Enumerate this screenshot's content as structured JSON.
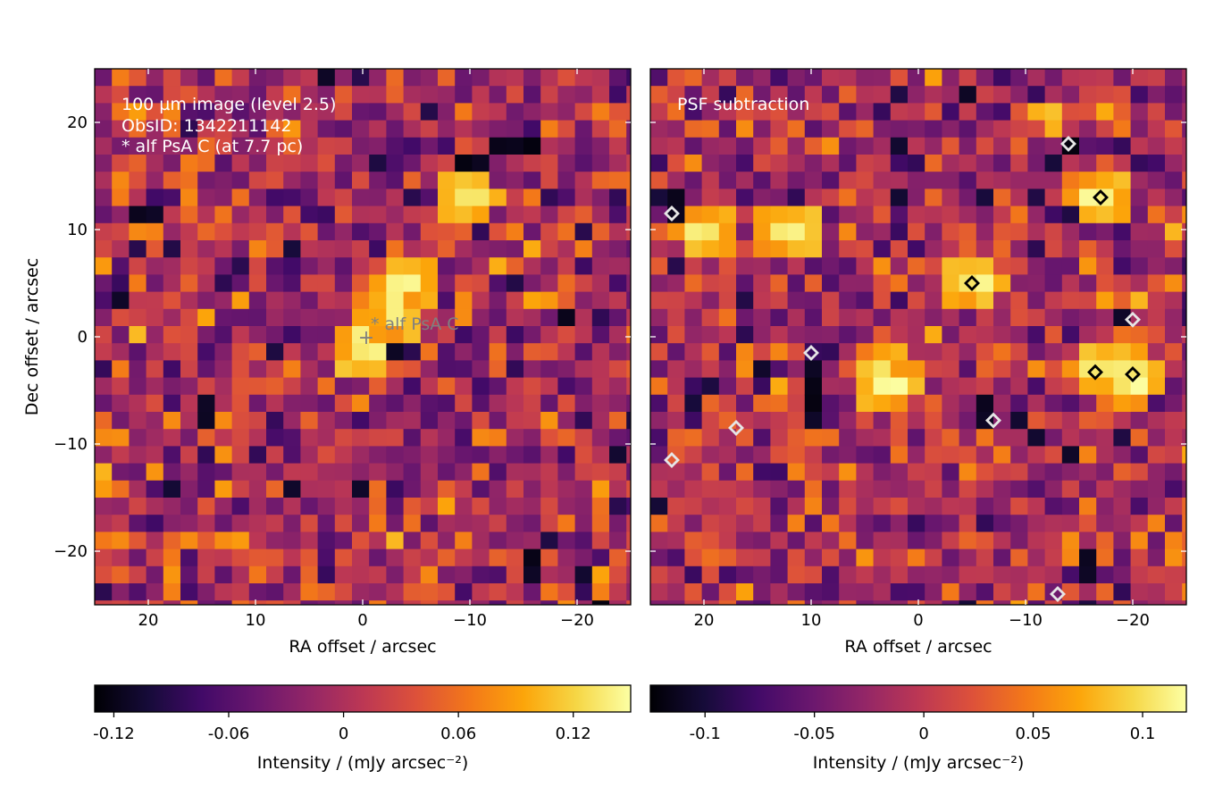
{
  "chart_data": [
    {
      "type": "heatmap",
      "panel": "left",
      "annotation_lines": [
        "100 µm image (level 2.5)",
        "ObsID: 1342211142",
        "* alf PsA C (at 7.7 pc)"
      ],
      "target_marker": "+",
      "target_label": "* alf PsA C",
      "xlabel": "RA offset / arcsec",
      "ylabel": "Dec offset / arcsec",
      "xlim": [
        25,
        -25
      ],
      "ylim": [
        -25,
        25
      ],
      "xticks": [
        20,
        10,
        0,
        -10,
        -20
      ],
      "xtick_labels": [
        "20",
        "10",
        "0",
        "−10",
        "−20"
      ],
      "yticks": [
        20,
        10,
        0,
        -10,
        -20
      ],
      "ytick_labels": [
        "20",
        "10",
        "0",
        "−10",
        "−20"
      ],
      "pixel_size_arcsec": 1.6,
      "colormap": "inferno",
      "seed": 7,
      "bright_peaks": [
        [
          0,
          -1
        ],
        [
          -3,
          2
        ],
        [
          -4,
          5
        ],
        [
          -10,
          13
        ]
      ],
      "dark_spots": [
        [
          -19,
          2
        ],
        [
          -13,
          18
        ],
        [
          -16,
          18
        ],
        [
          20,
          11
        ],
        [
          -10,
          16
        ],
        [
          15,
          -7
        ],
        [
          -16,
          -21
        ]
      ],
      "colorbar": {
        "vmin": -0.13,
        "vmax": 0.15,
        "ticks": [
          -0.12,
          -0.06,
          0,
          0.06,
          0.12
        ],
        "tick_labels": [
          "-0.12",
          "-0.06",
          "0",
          "0.06",
          "0.12"
        ],
        "label": "Intensity / (mJy arcsec⁻²)"
      }
    },
    {
      "type": "heatmap",
      "panel": "right",
      "annotation_lines": [
        "PSF subtraction"
      ],
      "xlabel": "RA offset / arcsec",
      "xlim": [
        25,
        -25
      ],
      "ylim": [
        -25,
        25
      ],
      "xticks": [
        20,
        10,
        0,
        -10,
        -20
      ],
      "xtick_labels": [
        "20",
        "10",
        "0",
        "−10",
        "−20"
      ],
      "pixel_size_arcsec": 1.6,
      "colormap": "inferno",
      "seed": 19,
      "bright_peaks": [
        [
          -5,
          5
        ],
        [
          -20,
          -4
        ],
        [
          3,
          -4
        ],
        [
          -17,
          -3
        ],
        [
          -17,
          13
        ],
        [
          12,
          10
        ],
        [
          20,
          10
        ]
      ],
      "dark_spots": [
        [
          -14,
          18
        ],
        [
          -19,
          2
        ],
        [
          23,
          12
        ],
        [
          10,
          -4
        ],
        [
          10,
          -7
        ],
        [
          -6,
          -7
        ],
        [
          -14,
          -11
        ],
        [
          -16,
          -21
        ]
      ],
      "contours": {
        "white": [
          [
            -14,
            18
          ],
          [
            23,
            11.5
          ],
          [
            -20,
            1.6
          ],
          [
            10,
            -1.5
          ],
          [
            17,
            -8.5
          ],
          [
            -7,
            -7.8
          ],
          [
            23,
            -11.5
          ],
          [
            -13,
            -24
          ]
        ],
        "black": [
          [
            -5,
            5
          ],
          [
            -20,
            -3.5
          ],
          [
            -17,
            13
          ],
          [
            -16.5,
            -3.3
          ]
        ]
      },
      "colorbar": {
        "vmin": -0.125,
        "vmax": 0.12,
        "ticks": [
          -0.1,
          -0.05,
          0,
          0.05,
          0.1
        ],
        "tick_labels": [
          "-0.1",
          "-0.05",
          "0",
          "0.05",
          "0.1"
        ],
        "label": "Intensity / (mJy arcsec⁻²)"
      }
    }
  ]
}
